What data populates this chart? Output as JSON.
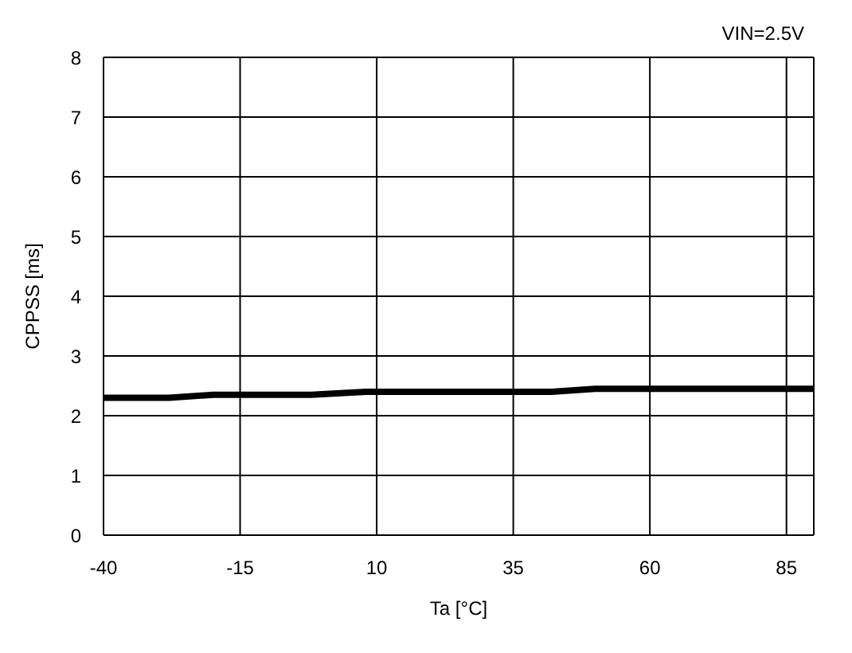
{
  "chart_data": {
    "type": "line",
    "xlabel": "Ta [°C]",
    "ylabel": "CPPSS [ms]",
    "annotations": [
      "VIN=2.5V"
    ],
    "x": [
      -40,
      -28,
      -20,
      -2,
      8,
      42,
      50,
      90
    ],
    "series": [
      {
        "color": "#000000",
        "values": [
          2.3,
          2.3,
          2.35,
          2.35,
          2.4,
          2.4,
          2.45,
          2.45
        ]
      }
    ],
    "xlim": [
      -40,
      90
    ],
    "xticks": [
      -40,
      -15,
      10,
      35,
      60,
      85
    ],
    "ylim": [
      0,
      8
    ],
    "yticks": [
      0,
      1,
      2,
      3,
      4,
      5,
      6,
      7,
      8
    ],
    "grid": true,
    "marker": "none",
    "line_style": "solid"
  }
}
